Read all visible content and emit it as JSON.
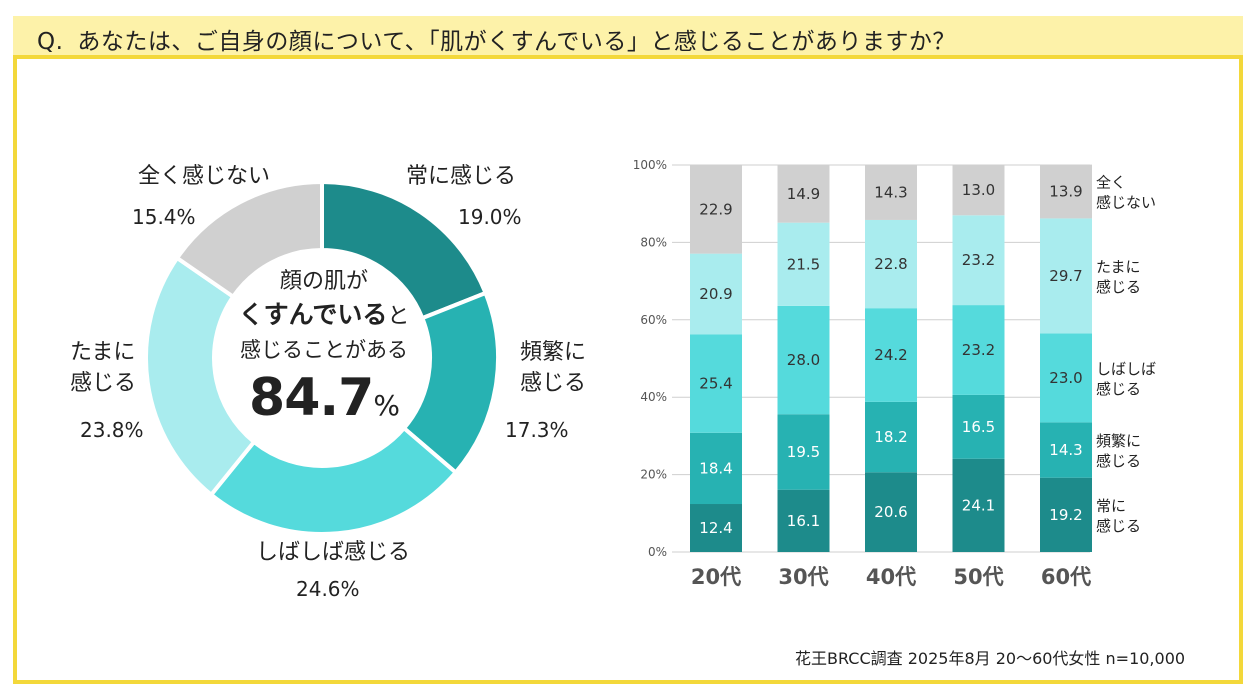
{
  "question": {
    "prefix": "Q.",
    "text": "あなたは、ご自身の顔について、「肌がくすんでいる」と感じることがありますか？"
  },
  "colors": {
    "always": "#1d8b8b",
    "frequent": "#27b2b2",
    "often": "#55dadc",
    "sometimes": "#a9ecee",
    "never": "#d0d0d0",
    "frame": "#f3d83a",
    "qbar": "#fdf2a9"
  },
  "donut": {
    "center_line1": "顔の肌が",
    "center_line2_bold": "くすんでいる",
    "center_line2_rest": "と",
    "center_line3": "感じることがある",
    "center_value": "84.7",
    "center_unit": "%",
    "segments": [
      {
        "label_line1": "常に感じる",
        "label_line2": "",
        "value": "19.0%"
      },
      {
        "label_line1": "頻繁に",
        "label_line2": "感じる",
        "value": "17.3%"
      },
      {
        "label_line1": "しばしば感じる",
        "label_line2": "",
        "value": "24.6%"
      },
      {
        "label_line1": "たまに",
        "label_line2": "感じる",
        "value": "23.8%"
      },
      {
        "label_line1": "全く感じない",
        "label_line2": "",
        "value": "15.4%"
      }
    ]
  },
  "chart_data": [
    {
      "type": "pie",
      "title": "",
      "categories": [
        "常に感じる",
        "頻繁に感じる",
        "しばしば感じる",
        "たまに感じる",
        "全く感じない"
      ],
      "values": [
        19.0,
        17.3,
        24.6,
        23.8,
        15.4
      ]
    },
    {
      "type": "bar",
      "stacked": true,
      "categories": [
        "20代",
        "30代",
        "40代",
        "50代",
        "60代"
      ],
      "yticks": [
        "0%",
        "20%",
        "40%",
        "60%",
        "80%",
        "100%"
      ],
      "ylim": [
        0,
        100
      ],
      "series": [
        {
          "name": "常に感じる",
          "legend": [
            "常に",
            "感じる"
          ],
          "values": [
            12.4,
            16.1,
            20.6,
            24.1,
            19.2
          ]
        },
        {
          "name": "頻繁に感じる",
          "legend": [
            "頻繁に",
            "感じる"
          ],
          "values": [
            18.4,
            19.5,
            18.2,
            16.5,
            14.3
          ]
        },
        {
          "name": "しばしば感じる",
          "legend": [
            "しばしば",
            "感じる"
          ],
          "values": [
            25.4,
            28.0,
            24.2,
            23.2,
            23.0
          ]
        },
        {
          "name": "たまに感じる",
          "legend": [
            "たまに",
            "感じる"
          ],
          "values": [
            20.9,
            21.5,
            22.8,
            23.2,
            29.7
          ]
        },
        {
          "name": "全く感じない",
          "legend": [
            "全く",
            "感じない"
          ],
          "values": [
            22.9,
            14.9,
            14.3,
            13.0,
            13.9
          ]
        }
      ]
    }
  ],
  "source": "花王BRCC調査 2025年8月 20～60代女性 n=10,000"
}
